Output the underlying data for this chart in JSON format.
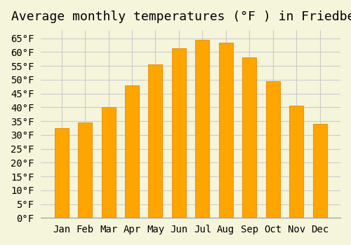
{
  "title": "Average monthly temperatures (°F ) in Friedberg",
  "months": [
    "Jan",
    "Feb",
    "Mar",
    "Apr",
    "May",
    "Jun",
    "Jul",
    "Aug",
    "Sep",
    "Oct",
    "Nov",
    "Dec"
  ],
  "values": [
    32.5,
    34.5,
    40.0,
    48.0,
    55.5,
    61.5,
    64.5,
    63.5,
    58.0,
    49.5,
    40.5,
    34.0
  ],
  "bar_color": "#FFA500",
  "bar_edge_color": "#E8941A",
  "background_color": "#F5F5DC",
  "grid_color": "#CCCCCC",
  "ylim": [
    0,
    68
  ],
  "ytick_step": 5,
  "title_fontsize": 13,
  "tick_fontsize": 10,
  "font_family": "monospace"
}
